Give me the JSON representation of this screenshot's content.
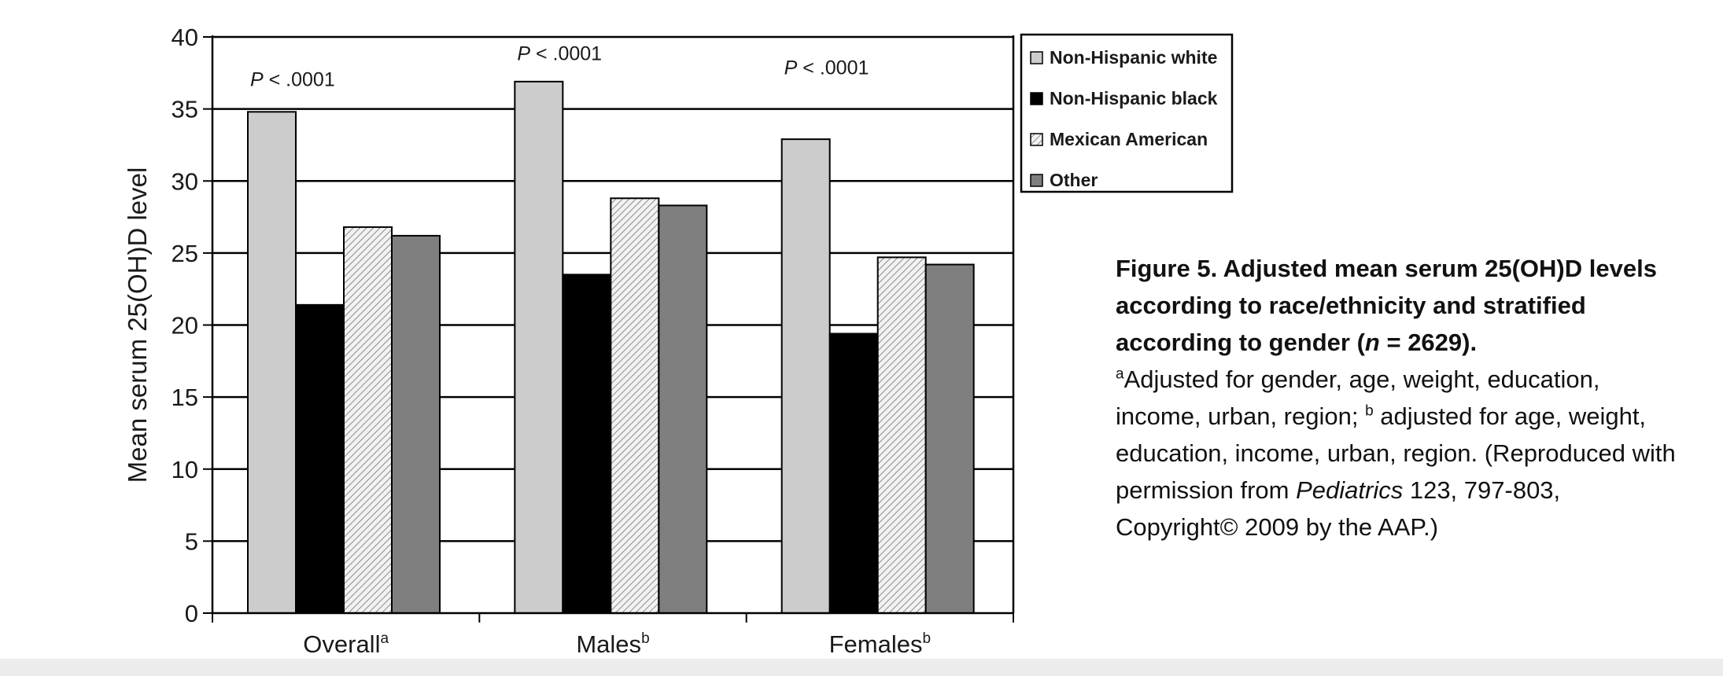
{
  "chart_data": {
    "type": "bar",
    "ylabel": "Mean serum 25(OH)D level",
    "xlabel": "",
    "ylim": [
      0,
      40
    ],
    "yticks": [
      0,
      5,
      10,
      15,
      20,
      25,
      30,
      35,
      40
    ],
    "grid": true,
    "legend_position": "top-right",
    "categories": [
      {
        "label": "Overall",
        "sup": "a"
      },
      {
        "label": "Males",
        "sup": "b"
      },
      {
        "label": "Females",
        "sup": "b"
      }
    ],
    "series": [
      {
        "name": "Non-Hispanic white",
        "values": [
          34.8,
          36.9,
          32.9
        ],
        "color": "#cccccc",
        "pattern": "solid"
      },
      {
        "name": "Non-Hispanic black",
        "values": [
          21.4,
          23.5,
          19.4
        ],
        "color": "#000000",
        "pattern": "solid"
      },
      {
        "name": "Mexican American",
        "values": [
          26.8,
          28.8,
          24.7
        ],
        "color": "#e6e6e6",
        "pattern": "hatched"
      },
      {
        "name": "Other",
        "values": [
          26.2,
          28.3,
          24.2
        ],
        "color": "#7f7f7f",
        "pattern": "solid"
      }
    ],
    "annotations": [
      {
        "italic": "P",
        "text": " < .0001",
        "category": 0,
        "y": 36.6
      },
      {
        "italic": "P",
        "text": " < .0001",
        "category": 1,
        "y": 38.4
      },
      {
        "italic": "P",
        "text": " < .0001",
        "category": 2,
        "y": 37.4
      }
    ]
  },
  "caption": {
    "title_prefix": "Figure 5. Adjusted mean serum 25(OH)D levels according to race/ethnicity and stratified according to gender (",
    "title_n": "n",
    "title_suffix": " = 2629).",
    "sup_a": "a",
    "note_a": "Adjusted for gender, age, weight, education, income, urban, region; ",
    "sup_b": "b",
    "note_b": " adjusted for age, weight, education, income, urban, region. (Reproduced with permission from ",
    "journal": "Pediatrics",
    "ref": " 123, 797-803, Copyright© 2009 by the AAP.)"
  }
}
